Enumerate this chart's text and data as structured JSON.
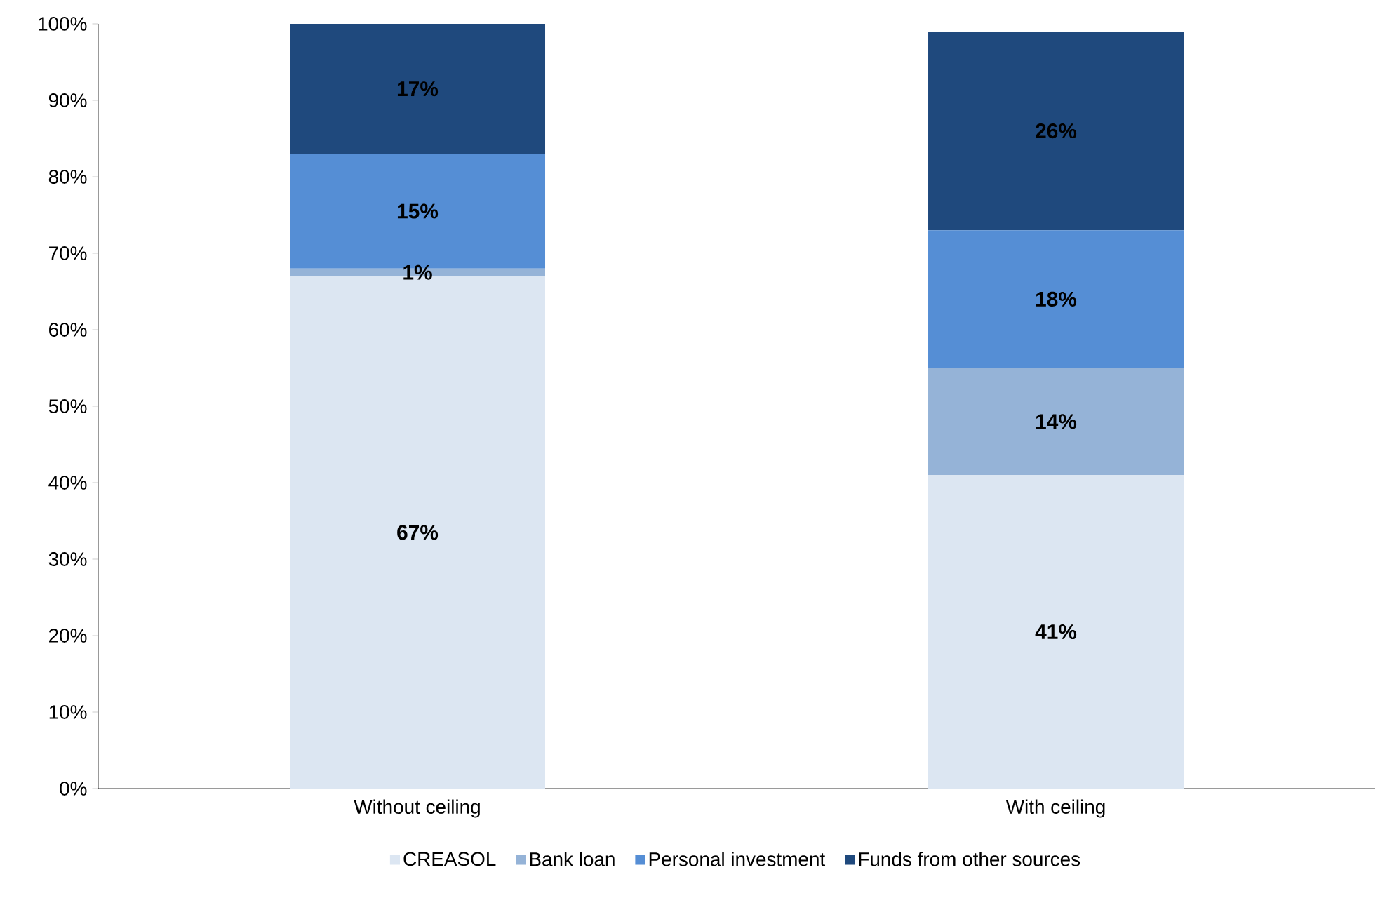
{
  "chart_data": {
    "type": "bar",
    "stacked": true,
    "categories": [
      "Without ceiling",
      "With ceiling"
    ],
    "series": [
      {
        "name": "CREASOL",
        "color": "#dce6f2",
        "values": [
          67,
          41
        ],
        "value_labels": [
          "67%",
          "41%"
        ]
      },
      {
        "name": "Bank loan",
        "color": "#95b3d7",
        "values": [
          1,
          14
        ],
        "value_labels": [
          "1%",
          "14%"
        ]
      },
      {
        "name": "Personal investment",
        "color": "#558ed5",
        "values": [
          15,
          18
        ],
        "value_labels": [
          "15%",
          "18%"
        ]
      },
      {
        "name": "Funds from other sources",
        "color": "#1f497d",
        "values": [
          17,
          26
        ],
        "value_labels": [
          "17%",
          "26%"
        ]
      }
    ],
    "ylim": [
      0,
      100
    ],
    "yticks": [
      {
        "value": 0,
        "label": "0%"
      },
      {
        "value": 10,
        "label": "10%"
      },
      {
        "value": 20,
        "label": "20%"
      },
      {
        "value": 30,
        "label": "30%"
      },
      {
        "value": 40,
        "label": "40%"
      },
      {
        "value": 50,
        "label": "50%"
      },
      {
        "value": 60,
        "label": "60%"
      },
      {
        "value": 70,
        "label": "70%"
      },
      {
        "value": 80,
        "label": "80%"
      },
      {
        "value": 90,
        "label": "90%"
      },
      {
        "value": 100,
        "label": "100%"
      }
    ],
    "grid": false,
    "legend": "bottom"
  }
}
